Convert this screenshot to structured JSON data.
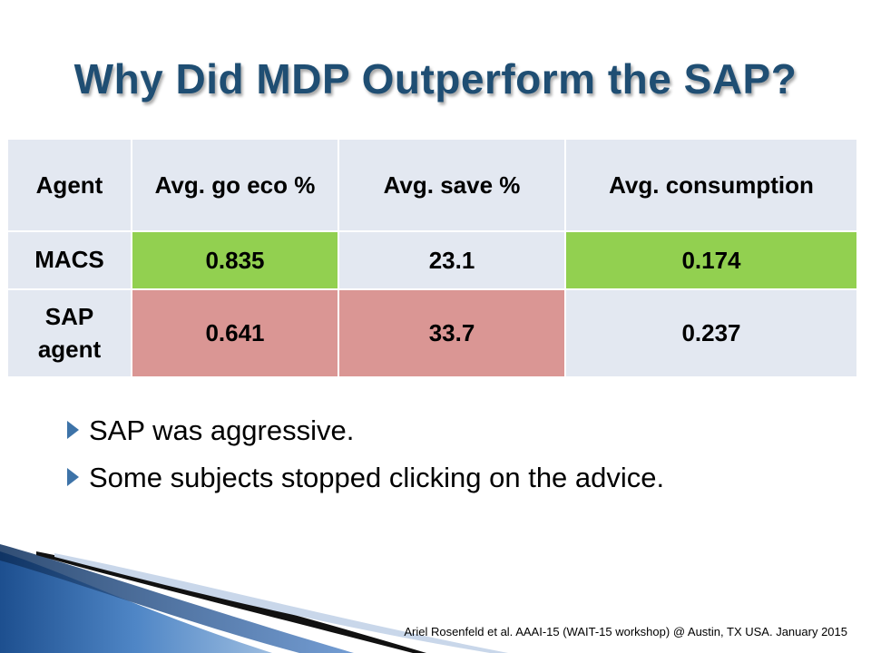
{
  "title": "Why Did MDP Outperform the SAP?",
  "table": {
    "headers": [
      "Agent",
      "Avg. go eco %",
      "Avg. save %",
      "Avg. consumption"
    ],
    "rows": [
      {
        "agent": "MACS",
        "cells": [
          "0.835",
          "23.1",
          "0.174"
        ],
        "colors": [
          "#92d050",
          "#e3e8f1",
          "#92d050"
        ]
      },
      {
        "agent": "SAP agent",
        "cells": [
          "0.641",
          "33.7",
          "0.237"
        ],
        "colors": [
          "#da9694",
          "#da9694",
          "#e3e8f1"
        ]
      }
    ],
    "header_bg": "#e3e8f1",
    "agent_bg": "#e3e8f1"
  },
  "bullets": [
    "SAP was aggressive.",
    "Some subjects stopped clicking on the advice."
  ],
  "footer": "Ariel Rosenfeld et al. AAAI-15 (WAIT-15  workshop) @ Austin, TX USA. January 2015",
  "colors": {
    "title": "#1f4e73",
    "bullet_arrow": "#3d73a8",
    "swoosh": "#2a5da0"
  }
}
